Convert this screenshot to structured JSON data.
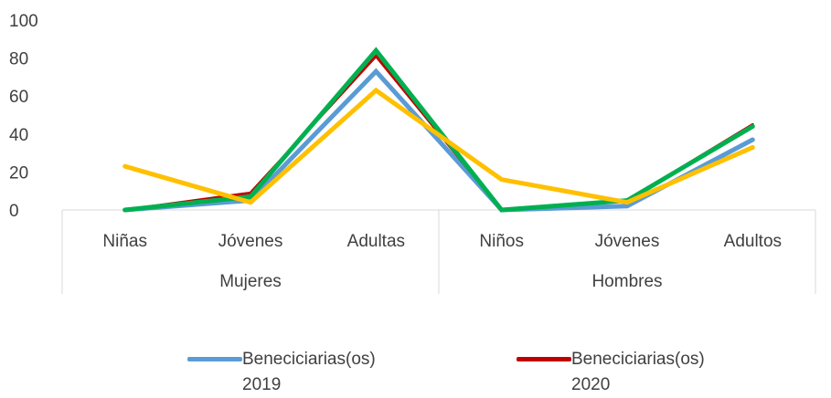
{
  "chart_data": {
    "type": "line",
    "categories": [
      "Niñas",
      "Jóvenes",
      "Adultas",
      "Niños",
      "Jóvenes",
      "Adultos"
    ],
    "groups": [
      {
        "label": "Mujeres",
        "span": [
          0,
          2
        ]
      },
      {
        "label": "Hombres",
        "span": [
          3,
          5
        ]
      }
    ],
    "ylim": [
      0,
      100
    ],
    "yticks": [
      "0",
      "20",
      "40",
      "60",
      "80",
      "100"
    ],
    "grid": false,
    "legend_position": "bottom",
    "series": [
      {
        "name": "Benecicliarias(os) 2019",
        "color": "#5B9BD5",
        "values": [
          0,
          5,
          73,
          0,
          2,
          37
        ]
      },
      {
        "name": "Benecicliarias(os) 2020",
        "color": "#C00000",
        "values": [
          0,
          9,
          81,
          0,
          5,
          45
        ]
      },
      {
        "name": "",
        "color": "#00B050",
        "values": [
          0,
          7,
          84,
          0,
          5,
          44
        ]
      },
      {
        "name": "",
        "color": "#FFC000",
        "values": [
          23,
          4,
          63,
          16,
          4,
          33
        ]
      }
    ]
  },
  "legend": [
    {
      "line1": "Beneciciarias(os)",
      "line2": "2019",
      "color": "#5B9BD5"
    },
    {
      "line1": "Beneciciarias(os)",
      "line2": "2020",
      "color": "#C00000"
    }
  ]
}
